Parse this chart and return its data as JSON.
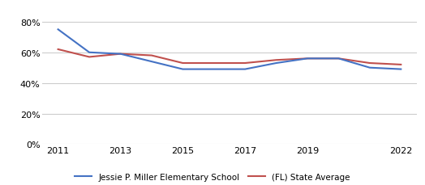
{
  "school_years": [
    2011,
    2012,
    2013,
    2014,
    2015,
    2016,
    2017,
    2018,
    2019,
    2020,
    2021,
    2022
  ],
  "school_values": [
    0.75,
    0.6,
    0.59,
    0.54,
    0.49,
    0.49,
    0.49,
    0.53,
    0.56,
    0.56,
    0.5,
    0.49
  ],
  "state_years": [
    2011,
    2012,
    2013,
    2014,
    2015,
    2016,
    2017,
    2018,
    2019,
    2020,
    2021,
    2022
  ],
  "state_values": [
    0.62,
    0.57,
    0.59,
    0.58,
    0.53,
    0.53,
    0.53,
    0.55,
    0.56,
    0.56,
    0.53,
    0.52
  ],
  "school_color": "#4472c4",
  "state_color": "#c0504d",
  "school_label": "Jessie P. Miller Elementary School",
  "state_label": "(FL) State Average",
  "ylim": [
    0.0,
    0.85
  ],
  "yticks": [
    0.0,
    0.2,
    0.4,
    0.6,
    0.8
  ],
  "ytick_labels": [
    "0%",
    "20%",
    "40%",
    "60%",
    "80%"
  ],
  "xlim": [
    2010.5,
    2022.5
  ],
  "xticks": [
    2011,
    2013,
    2015,
    2017,
    2019,
    2022
  ],
  "grid_color": "#cccccc",
  "background_color": "#ffffff",
  "line_width": 1.5,
  "legend_fontsize": 7.5,
  "tick_fontsize": 8
}
